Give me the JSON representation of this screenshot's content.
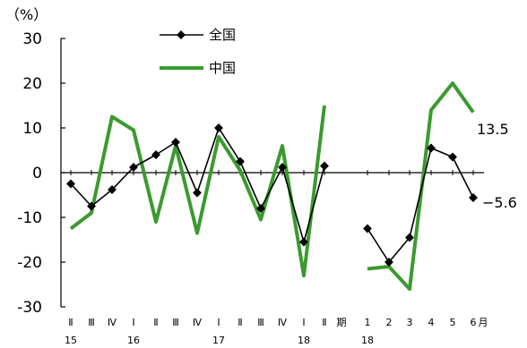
{
  "chart_data": {
    "type": "line",
    "unit_label": "（%）",
    "ylim": [
      -30,
      30
    ],
    "y_ticks": [
      "30",
      "20",
      "10",
      "0",
      "-10",
      "-20",
      "-30"
    ],
    "grid": false,
    "legend_position": "top-center",
    "x_labels": [
      "Ⅱ",
      "Ⅲ",
      "Ⅳ",
      "Ⅰ",
      "Ⅱ",
      "Ⅲ",
      "Ⅳ",
      "Ⅰ",
      "Ⅱ",
      "Ⅲ",
      "Ⅳ",
      "Ⅰ",
      "Ⅱ",
      "期",
      "1",
      "2",
      "3",
      "4",
      "5",
      "6",
      "月"
    ],
    "year_labels": [
      "15",
      "16",
      "17",
      "18",
      "18"
    ],
    "series": [
      {
        "name": "全国",
        "color": "#000000",
        "marker": "diamond",
        "segments": [
          [
            -2.5,
            -7.5,
            -3.8,
            1.2,
            4.0,
            6.8,
            -4.5,
            10.0,
            2.5,
            -8.0,
            1.2,
            -15.5,
            1.5
          ],
          [
            -12.5,
            -20.0,
            -14.5,
            5.5,
            3.5,
            -5.6
          ]
        ]
      },
      {
        "name": "中国",
        "color": "#3b9a2f",
        "marker": "none",
        "segments": [
          [
            -12.5,
            -9.0,
            12.5,
            9.5,
            -11.0,
            6.0,
            -13.5,
            8.0,
            0.5,
            -10.5,
            6.0,
            -23.0,
            15.0
          ],
          [
            -21.5,
            -21.0,
            -26.0,
            14.0,
            20.0,
            13.5
          ]
        ]
      }
    ],
    "end_labels": [
      "13.5",
      "−5.6"
    ]
  }
}
